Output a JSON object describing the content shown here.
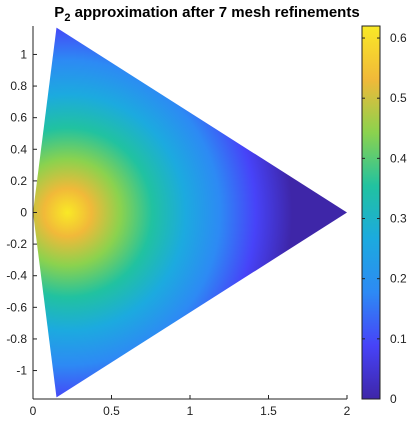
{
  "chart_data": {
    "type": "heatmap",
    "title": {
      "main": "P",
      "subscript": "2",
      "rest": " approximation after 7 mesh refinements"
    },
    "xlabel": "",
    "ylabel": "",
    "xlim": [
      0,
      2
    ],
    "ylim": [
      -1.18,
      1.18
    ],
    "xticks": [
      0,
      0.5,
      1,
      1.5,
      2
    ],
    "xtick_labels": [
      "0",
      "0.5",
      "1",
      "1.5",
      "2"
    ],
    "yticks": [
      1,
      0.8,
      0.6,
      0.4,
      0.2,
      0,
      -0.2,
      -0.4,
      -0.6,
      -0.8,
      -1
    ],
    "ytick_labels": [
      "1",
      "0.8",
      "0.6",
      "0.4",
      "0.2",
      "0",
      "-0.2",
      "-0.4",
      "-0.6",
      "-0.8",
      "-1"
    ],
    "domain_vertices": [
      [
        0,
        0
      ],
      [
        0.15,
        1.17
      ],
      [
        2,
        0
      ],
      [
        0.15,
        -1.17
      ]
    ],
    "field_peak": {
      "x": 0.22,
      "y": 0,
      "value": 0.6
    },
    "colorbar": {
      "range": [
        0,
        0.62
      ],
      "ticks": [
        0,
        0.1,
        0.2,
        0.3,
        0.4,
        0.5,
        0.6
      ],
      "tick_labels": [
        "0",
        "0.1",
        "0.2",
        "0.3",
        "0.4",
        "0.5",
        "0.6"
      ],
      "colormap": "parula",
      "colors": [
        "#3e26a8",
        "#4743f8",
        "#2d8af4",
        "#1caadf",
        "#21c2a0",
        "#8bd24e",
        "#f1b939",
        "#f9e926"
      ]
    },
    "grid": false
  }
}
